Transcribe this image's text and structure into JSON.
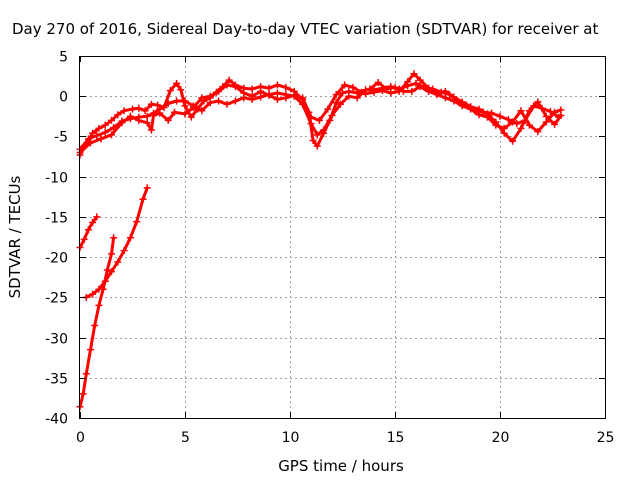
{
  "chart_data": {
    "type": "line",
    "title": "Day 270 of 2016, Sidereal Day-to-day VTEC variation (SDTVAR) for receiver at",
    "xlabel": "GPS time / hours",
    "ylabel": "SDTVAR / TECUs",
    "xlim": [
      0,
      25
    ],
    "ylim": [
      -40,
      5
    ],
    "xticks": [
      0,
      5,
      10,
      15,
      20,
      25
    ],
    "yticks": [
      5,
      0,
      -5,
      -10,
      -15,
      -20,
      -25,
      -30,
      -35,
      -40
    ],
    "grid": true,
    "series_color": "#ff0000",
    "series": [
      {
        "values": [
          [
            0.0,
            -7.3
          ],
          [
            0.3,
            -6.0
          ],
          [
            0.6,
            -4.6
          ],
          [
            0.9,
            -4.0
          ],
          [
            1.2,
            -3.6
          ],
          [
            1.5,
            -3.0
          ],
          [
            1.8,
            -2.3
          ],
          [
            2.1,
            -1.8
          ],
          [
            2.5,
            -1.6
          ],
          [
            2.8,
            -1.5
          ],
          [
            3.1,
            -1.8
          ],
          [
            3.4,
            -1.0
          ],
          [
            3.7,
            -1.1
          ],
          [
            4.0,
            -1.4
          ],
          [
            4.3,
            0.7
          ],
          [
            4.6,
            1.6
          ],
          [
            4.8,
            0.8
          ],
          [
            5.0,
            -1.2
          ],
          [
            5.3,
            -2.6
          ],
          [
            5.6,
            -1.6
          ],
          [
            5.9,
            -0.6
          ],
          [
            6.2,
            -0.2
          ],
          [
            6.5,
            0.5
          ],
          [
            6.8,
            1.2
          ],
          [
            7.1,
            2.0
          ],
          [
            7.4,
            1.4
          ],
          [
            7.8,
            1.0
          ],
          [
            8.2,
            0.9
          ],
          [
            8.6,
            1.2
          ],
          [
            9.0,
            1.0
          ],
          [
            9.4,
            1.4
          ],
          [
            9.8,
            1.1
          ],
          [
            10.2,
            0.6
          ],
          [
            10.6,
            -0.4
          ],
          [
            10.9,
            -2.0
          ],
          [
            11.1,
            -5.5
          ],
          [
            11.3,
            -6.2
          ],
          [
            11.6,
            -4.6
          ],
          [
            11.9,
            -3.0
          ],
          [
            12.2,
            -0.8
          ],
          [
            12.5,
            0.4
          ],
          [
            12.8,
            0.6
          ],
          [
            13.2,
            0.4
          ],
          [
            13.6,
            0.3
          ],
          [
            14.0,
            0.5
          ],
          [
            14.4,
            0.7
          ],
          [
            14.8,
            0.4
          ],
          [
            15.2,
            0.6
          ],
          [
            15.6,
            1.8
          ],
          [
            15.9,
            2.8
          ],
          [
            16.2,
            2.0
          ],
          [
            16.6,
            1.0
          ],
          [
            17.0,
            0.4
          ],
          [
            17.4,
            0.6
          ],
          [
            17.8,
            -0.1
          ],
          [
            18.2,
            -0.7
          ],
          [
            18.6,
            -1.3
          ],
          [
            19.0,
            -1.6
          ],
          [
            19.4,
            -2.2
          ],
          [
            19.8,
            -3.2
          ],
          [
            20.2,
            -4.6
          ],
          [
            20.6,
            -5.6
          ],
          [
            21.0,
            -4.0
          ],
          [
            21.4,
            -1.8
          ],
          [
            21.8,
            -0.7
          ],
          [
            22.2,
            -2.5
          ],
          [
            22.6,
            -3.5
          ],
          [
            22.9,
            -2.4
          ]
        ]
      },
      {
        "values": [
          [
            0.0,
            -6.6
          ],
          [
            0.4,
            -5.3
          ],
          [
            0.8,
            -4.9
          ],
          [
            1.2,
            -4.5
          ],
          [
            1.6,
            -3.9
          ],
          [
            2.0,
            -3.1
          ],
          [
            2.4,
            -2.8
          ],
          [
            2.8,
            -2.6
          ],
          [
            3.2,
            -2.5
          ],
          [
            3.5,
            -2.1
          ],
          [
            3.8,
            -1.6
          ],
          [
            4.2,
            -0.9
          ],
          [
            4.6,
            -0.6
          ],
          [
            5.0,
            -0.6
          ],
          [
            5.4,
            -1.2
          ],
          [
            5.8,
            -1.8
          ],
          [
            6.2,
            -0.8
          ],
          [
            6.6,
            -0.6
          ],
          [
            7.0,
            -1.0
          ],
          [
            7.4,
            -0.6
          ],
          [
            7.8,
            -0.2
          ],
          [
            8.2,
            -0.4
          ],
          [
            8.6,
            -0.1
          ],
          [
            9.0,
            0.2
          ],
          [
            9.4,
            0.4
          ],
          [
            9.8,
            0.2
          ],
          [
            10.2,
            0.0
          ],
          [
            10.6,
            -1.0
          ],
          [
            11.0,
            -3.4
          ],
          [
            11.3,
            -4.8
          ],
          [
            11.6,
            -4.2
          ],
          [
            12.0,
            -2.4
          ],
          [
            12.4,
            -1.0
          ],
          [
            12.8,
            0.0
          ],
          [
            13.2,
            -0.2
          ],
          [
            13.6,
            0.8
          ],
          [
            14.0,
            0.8
          ],
          [
            14.4,
            1.0
          ],
          [
            14.8,
            1.2
          ],
          [
            15.2,
            0.9
          ],
          [
            15.6,
            1.3
          ],
          [
            16.0,
            1.6
          ],
          [
            16.4,
            1.1
          ],
          [
            16.8,
            0.9
          ],
          [
            17.2,
            0.5
          ],
          [
            17.6,
            0.2
          ],
          [
            18.0,
            -0.6
          ],
          [
            18.4,
            -1.1
          ],
          [
            18.8,
            -1.8
          ],
          [
            19.2,
            -2.0
          ],
          [
            19.6,
            -2.1
          ],
          [
            20.0,
            -2.5
          ],
          [
            20.4,
            -2.9
          ],
          [
            20.8,
            -3.4
          ],
          [
            21.2,
            -3.0
          ],
          [
            21.6,
            -1.2
          ],
          [
            22.0,
            -1.5
          ],
          [
            22.4,
            -1.9
          ],
          [
            22.8,
            -2.6
          ]
        ]
      },
      {
        "values": [
          [
            0.0,
            -7.0
          ],
          [
            0.5,
            -5.8
          ],
          [
            1.0,
            -5.3
          ],
          [
            1.5,
            -4.8
          ],
          [
            2.0,
            -3.3
          ],
          [
            2.4,
            -2.5
          ],
          [
            2.8,
            -3.0
          ],
          [
            3.2,
            -3.3
          ],
          [
            3.4,
            -4.2
          ],
          [
            3.5,
            -2.4
          ],
          [
            3.8,
            -2.1
          ],
          [
            4.2,
            -3.0
          ],
          [
            4.5,
            -2.0
          ],
          [
            5.0,
            -2.2
          ],
          [
            5.4,
            -1.4
          ],
          [
            5.8,
            -0.2
          ],
          [
            6.2,
            0.0
          ],
          [
            6.6,
            0.6
          ],
          [
            7.0,
            1.4
          ],
          [
            7.4,
            1.2
          ],
          [
            7.8,
            0.4
          ],
          [
            8.2,
            0.0
          ],
          [
            8.6,
            0.6
          ],
          [
            9.0,
            0.1
          ],
          [
            9.4,
            -0.4
          ],
          [
            9.8,
            -0.2
          ],
          [
            10.2,
            0.1
          ],
          [
            10.6,
            -0.2
          ],
          [
            11.0,
            -2.6
          ],
          [
            11.4,
            -3.0
          ],
          [
            11.8,
            -1.6
          ],
          [
            12.2,
            0.2
          ],
          [
            12.6,
            1.4
          ],
          [
            13.0,
            1.1
          ],
          [
            13.4,
            0.5
          ],
          [
            13.8,
            0.9
          ],
          [
            14.2,
            1.7
          ],
          [
            14.6,
            0.9
          ],
          [
            15.0,
            1.1
          ],
          [
            15.4,
            0.6
          ],
          [
            15.8,
            0.6
          ],
          [
            16.2,
            1.2
          ],
          [
            16.6,
            0.6
          ],
          [
            17.0,
            0.2
          ],
          [
            17.4,
            -0.2
          ],
          [
            17.8,
            -0.6
          ],
          [
            18.2,
            -1.2
          ],
          [
            18.6,
            -1.6
          ],
          [
            19.0,
            -2.3
          ],
          [
            19.4,
            -2.6
          ],
          [
            19.8,
            -3.6
          ],
          [
            20.2,
            -4.0
          ],
          [
            20.6,
            -3.2
          ],
          [
            21.0,
            -1.8
          ],
          [
            21.4,
            -3.6
          ],
          [
            21.8,
            -4.4
          ],
          [
            22.2,
            -3.2
          ],
          [
            22.6,
            -2.0
          ],
          [
            22.9,
            -1.7
          ]
        ]
      },
      {
        "values": [
          [
            0.0,
            -18.8
          ],
          [
            0.2,
            -17.8
          ],
          [
            0.4,
            -16.6
          ],
          [
            0.6,
            -15.7
          ],
          [
            0.8,
            -15.0
          ]
        ]
      },
      {
        "values": [
          [
            0.0,
            -38.6
          ],
          [
            0.15,
            -37.0
          ],
          [
            0.3,
            -34.5
          ],
          [
            0.5,
            -31.5
          ],
          [
            0.7,
            -28.5
          ],
          [
            0.9,
            -26.0
          ],
          [
            1.1,
            -24.0
          ],
          [
            1.3,
            -21.6
          ],
          [
            1.5,
            -19.6
          ],
          [
            1.6,
            -17.6
          ]
        ]
      },
      {
        "values": [
          [
            0.3,
            -25.0
          ],
          [
            0.6,
            -24.6
          ],
          [
            0.9,
            -24.0
          ],
          [
            1.2,
            -23.0
          ],
          [
            1.5,
            -21.8
          ],
          [
            1.8,
            -20.6
          ],
          [
            2.1,
            -19.2
          ],
          [
            2.4,
            -17.6
          ],
          [
            2.7,
            -15.6
          ],
          [
            3.0,
            -12.8
          ],
          [
            3.2,
            -11.4
          ]
        ]
      }
    ]
  }
}
